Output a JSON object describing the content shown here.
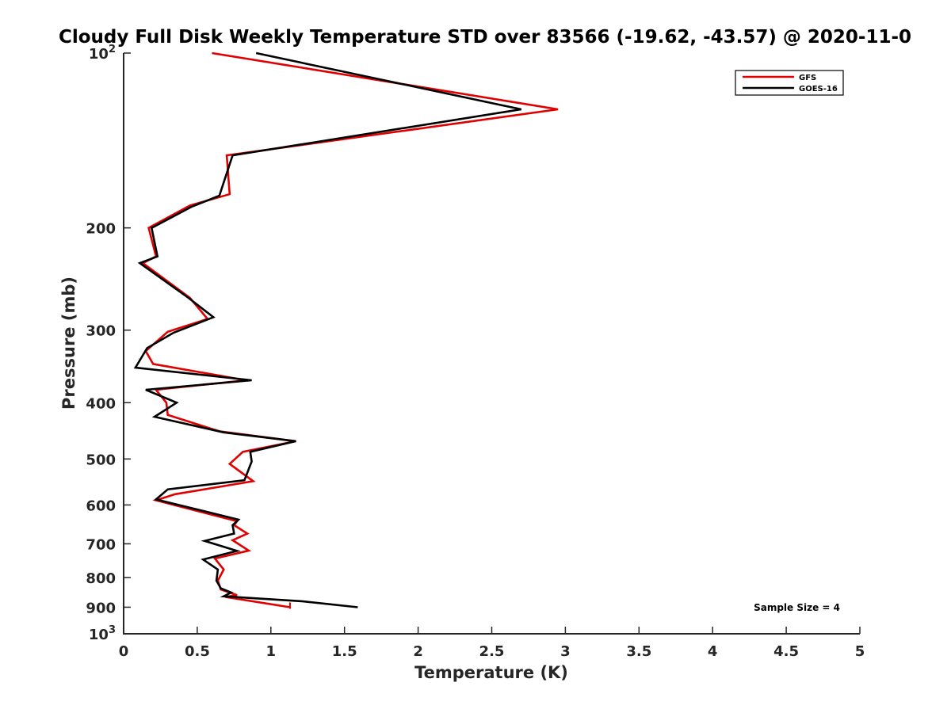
{
  "chart_data": {
    "type": "line",
    "title": "Cloudy Full Disk Weekly Temperature STD over 83566 (-19.62, -43.57) @ 2020-11-0",
    "xlabel": "Temperature (K)",
    "ylabel": "Pressure (mb)",
    "xlim": [
      0,
      5
    ],
    "ylim": [
      100,
      1000
    ],
    "y_scale": "log",
    "y_reversed": true,
    "grid": false,
    "legend_position": "top-right",
    "x_ticks": [
      "0",
      "0.5",
      "1",
      "1.5",
      "2",
      "2.5",
      "3",
      "3.5",
      "4",
      "4.5",
      "5"
    ],
    "x_tick_values": [
      0,
      0.5,
      1,
      1.5,
      2,
      2.5,
      3,
      3.5,
      4,
      4.5,
      5
    ],
    "y_ticks": [
      {
        "value": 100,
        "label": "10",
        "sup": "2"
      },
      {
        "value": 200,
        "label": "200",
        "sup": ""
      },
      {
        "value": 300,
        "label": "300",
        "sup": ""
      },
      {
        "value": 400,
        "label": "400",
        "sup": ""
      },
      {
        "value": 500,
        "label": "500",
        "sup": ""
      },
      {
        "value": 600,
        "label": "600",
        "sup": ""
      },
      {
        "value": 700,
        "label": "700",
        "sup": ""
      },
      {
        "value": 800,
        "label": "800",
        "sup": ""
      },
      {
        "value": 900,
        "label": "900",
        "sup": ""
      },
      {
        "value": 1000,
        "label": "10",
        "sup": "3"
      }
    ],
    "series": [
      {
        "name": "GFS",
        "color": "#e00000",
        "points": [
          [
            0.6,
            100
          ],
          [
            2.95,
            125
          ],
          [
            0.7,
            150
          ],
          [
            0.72,
            175
          ],
          [
            0.45,
            183
          ],
          [
            0.17,
            200
          ],
          [
            0.22,
            224
          ],
          [
            0.13,
            230
          ],
          [
            0.45,
            264
          ],
          [
            0.57,
            287
          ],
          [
            0.3,
            302
          ],
          [
            0.15,
            326
          ],
          [
            0.2,
            343
          ],
          [
            0.83,
            366
          ],
          [
            0.22,
            380
          ],
          [
            0.29,
            400
          ],
          [
            0.3,
            420
          ],
          [
            0.65,
            448
          ],
          [
            1.17,
            466
          ],
          [
            0.81,
            486
          ],
          [
            0.72,
            510
          ],
          [
            0.88,
            546
          ],
          [
            0.35,
            575
          ],
          [
            0.22,
            589
          ],
          [
            0.77,
            640
          ],
          [
            0.75,
            650
          ],
          [
            0.84,
            672
          ],
          [
            0.74,
            690
          ],
          [
            0.85,
            719
          ],
          [
            0.62,
            742
          ],
          [
            0.68,
            775
          ],
          [
            0.64,
            810
          ],
          [
            0.66,
            839
          ],
          [
            0.77,
            858
          ],
          [
            0.69,
            864
          ],
          [
            1.13,
            900
          ]
        ]
      },
      {
        "name": "GOES-16",
        "color": "#000000",
        "points": [
          [
            0.9,
            100
          ],
          [
            2.7,
            125
          ],
          [
            0.74,
            150
          ],
          [
            0.65,
            176
          ],
          [
            0.46,
            184
          ],
          [
            0.19,
            200
          ],
          [
            0.23,
            224
          ],
          [
            0.11,
            230
          ],
          [
            0.44,
            264
          ],
          [
            0.61,
            285
          ],
          [
            0.34,
            303
          ],
          [
            0.16,
            322
          ],
          [
            0.08,
            348
          ],
          [
            0.87,
            366
          ],
          [
            0.15,
            380
          ],
          [
            0.36,
            400
          ],
          [
            0.21,
            423
          ],
          [
            0.68,
            450
          ],
          [
            1.17,
            466
          ],
          [
            0.86,
            486
          ],
          [
            0.87,
            505
          ],
          [
            0.82,
            544
          ],
          [
            0.3,
            564
          ],
          [
            0.22,
            587
          ],
          [
            0.78,
            636
          ],
          [
            0.74,
            650
          ],
          [
            0.75,
            672
          ],
          [
            0.55,
            692
          ],
          [
            0.77,
            720
          ],
          [
            0.54,
            745
          ],
          [
            0.64,
            775
          ],
          [
            0.63,
            810
          ],
          [
            0.66,
            835
          ],
          [
            0.73,
            849
          ],
          [
            0.68,
            862
          ],
          [
            1.21,
            879
          ],
          [
            1.59,
            900
          ]
        ]
      }
    ],
    "annotations": [
      {
        "text": "Sample Size = 4",
        "position": "bottom-right"
      }
    ]
  }
}
